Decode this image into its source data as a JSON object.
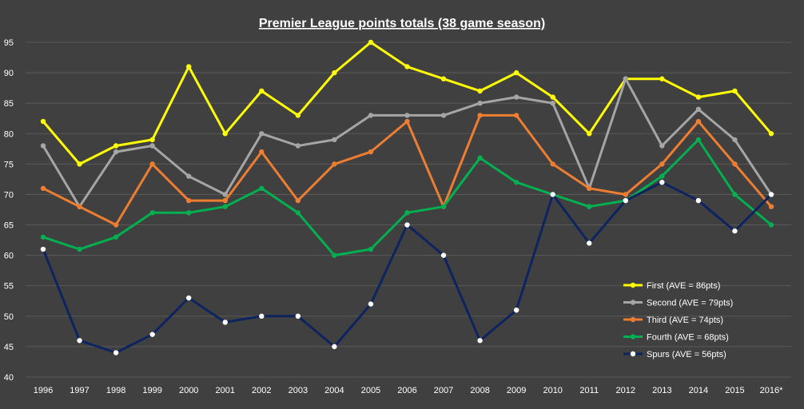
{
  "chart_data": {
    "type": "line",
    "title": "Premier League points totals (38 game season)",
    "xlabel": "",
    "ylabel": "",
    "ylim": [
      40,
      95
    ],
    "yticks": [
      "40",
      "45",
      "50",
      "55",
      "60",
      "65",
      "70",
      "75",
      "80",
      "85",
      "90",
      "95"
    ],
    "grid": true,
    "legend_position": "bottom-right",
    "categories": [
      "1996",
      "1997",
      "1998",
      "1999",
      "2000",
      "2001",
      "2002",
      "2003",
      "2004",
      "2005",
      "2006",
      "2007",
      "2008",
      "2009",
      "2010",
      "2011",
      "2012",
      "2013",
      "2014",
      "2015",
      "2016*"
    ],
    "series": [
      {
        "name": "First  (AVE = 86pts)",
        "color": "#ffff00",
        "marker_fill": "#ffff00",
        "values": [
          82,
          75,
          78,
          79,
          91,
          80,
          87,
          83,
          90,
          95,
          91,
          89,
          87,
          90,
          86,
          80,
          89,
          89,
          86,
          87,
          80
        ]
      },
      {
        "name": "Second (AVE = 79pts)",
        "color": "#a5a5a5",
        "marker_fill": "#a5a5a5",
        "values": [
          78,
          68,
          77,
          78,
          73,
          70,
          80,
          78,
          79,
          83,
          83,
          83,
          85,
          86,
          85,
          71,
          89,
          78,
          84,
          79,
          70
        ]
      },
      {
        "name": "Third (AVE = 74pts)",
        "color": "#ed7d31",
        "marker_fill": "#ed7d31",
        "values": [
          71,
          68,
          65,
          75,
          69,
          69,
          77,
          69,
          75,
          77,
          82,
          68,
          83,
          83,
          75,
          71,
          70,
          75,
          82,
          75,
          68
        ]
      },
      {
        "name": "Fourth (AVE = 68pts)",
        "color": "#00b050",
        "marker_fill": "#00b050",
        "values": [
          63,
          61,
          63,
          67,
          67,
          68,
          71,
          67,
          60,
          61,
          67,
          68,
          76,
          72,
          70,
          68,
          69,
          73,
          79,
          70,
          65
        ]
      },
      {
        "name": "Spurs (AVE = 56pts)",
        "color": "#0d2461",
        "marker_fill": "#ffffff",
        "values": [
          61,
          46,
          44,
          47,
          53,
          49,
          50,
          50,
          45,
          52,
          65,
          60,
          46,
          51,
          70,
          62,
          69,
          72,
          69,
          64,
          70
        ]
      }
    ]
  }
}
